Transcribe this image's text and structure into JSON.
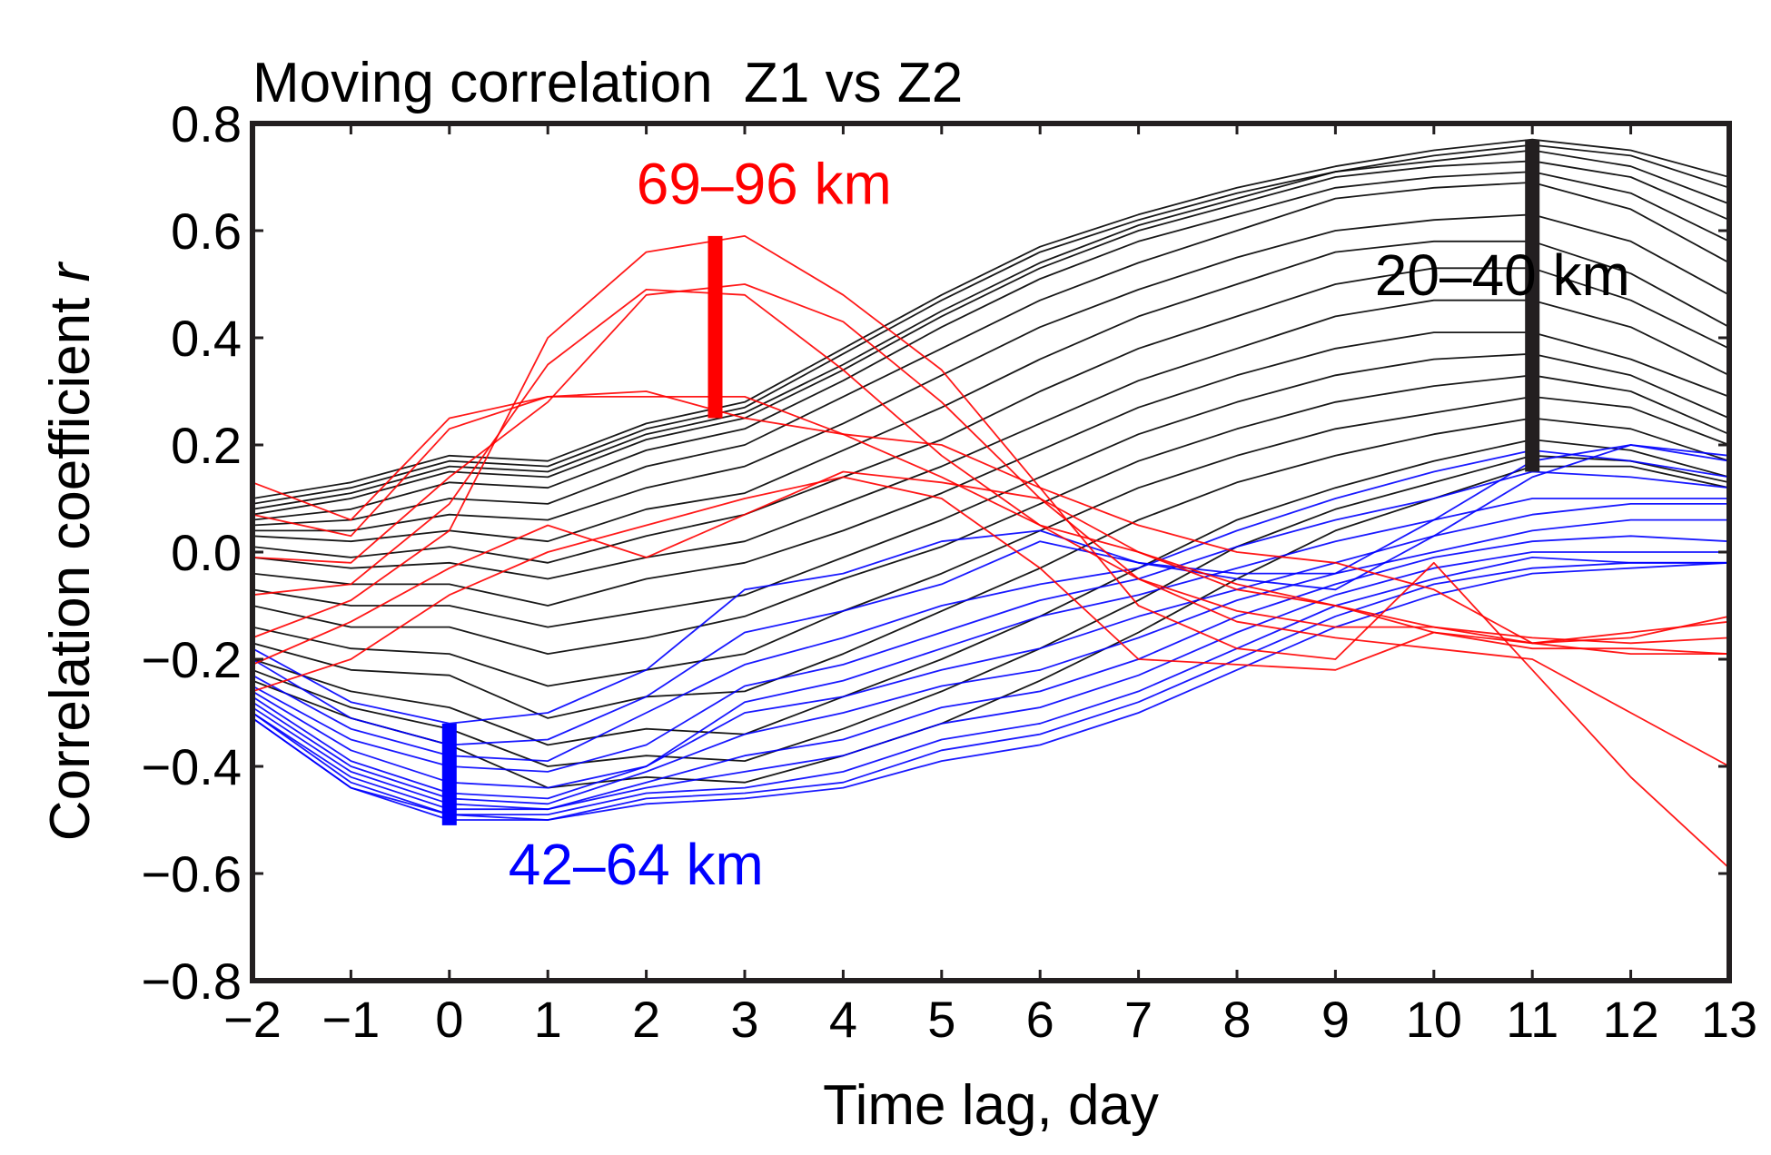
{
  "chart_data": {
    "type": "line",
    "title": "Moving correlation  Z1 vs Z2",
    "xlabel": "Time lag, day",
    "ylabel_main": "Correlation coefficient ",
    "ylabel_italic": "r",
    "xlim": [
      -2,
      13
    ],
    "ylim": [
      -0.8,
      0.8
    ],
    "x_ticks": [
      -2,
      -1,
      0,
      1,
      2,
      3,
      4,
      5,
      6,
      7,
      8,
      9,
      10,
      11,
      12,
      13
    ],
    "x_tick_labels": [
      "−2",
      "−1",
      "0",
      "1",
      "2",
      "3",
      "4",
      "5",
      "6",
      "7",
      "8",
      "9",
      "10",
      "11",
      "12",
      "13"
    ],
    "y_ticks": [
      0.8,
      0.6,
      0.4,
      0.2,
      0.0,
      -0.2,
      -0.4,
      -0.6,
      -0.8
    ],
    "y_tick_labels": [
      "0.8",
      "0.6",
      "0.4",
      "0.2",
      "0.0",
      "−0.2",
      "−0.4",
      "−0.6",
      "−0.8"
    ],
    "x": [
      -2,
      -1,
      0,
      1,
      2,
      3,
      4,
      5,
      6,
      7,
      8,
      9,
      10,
      11,
      12,
      13
    ],
    "groups": [
      {
        "name": "20–40 km",
        "color": "#000000",
        "series": [
          [
            0.1,
            0.13,
            0.18,
            0.17,
            0.24,
            0.28,
            0.38,
            0.48,
            0.57,
            0.63,
            0.68,
            0.72,
            0.75,
            0.77,
            0.75,
            0.7
          ],
          [
            0.09,
            0.12,
            0.17,
            0.16,
            0.23,
            0.27,
            0.37,
            0.47,
            0.56,
            0.62,
            0.67,
            0.71,
            0.74,
            0.76,
            0.74,
            0.68
          ],
          [
            0.08,
            0.11,
            0.16,
            0.15,
            0.22,
            0.26,
            0.35,
            0.45,
            0.54,
            0.61,
            0.66,
            0.71,
            0.73,
            0.75,
            0.72,
            0.65
          ],
          [
            0.07,
            0.1,
            0.15,
            0.14,
            0.21,
            0.25,
            0.34,
            0.44,
            0.53,
            0.6,
            0.65,
            0.7,
            0.72,
            0.73,
            0.7,
            0.62
          ],
          [
            0.06,
            0.08,
            0.13,
            0.12,
            0.19,
            0.23,
            0.32,
            0.42,
            0.51,
            0.58,
            0.63,
            0.68,
            0.7,
            0.71,
            0.67,
            0.58
          ],
          [
            0.05,
            0.06,
            0.1,
            0.09,
            0.16,
            0.2,
            0.29,
            0.38,
            0.47,
            0.54,
            0.6,
            0.66,
            0.68,
            0.69,
            0.64,
            0.54
          ],
          [
            0.04,
            0.04,
            0.07,
            0.06,
            0.12,
            0.16,
            0.24,
            0.33,
            0.42,
            0.49,
            0.55,
            0.6,
            0.62,
            0.63,
            0.58,
            0.48
          ],
          [
            0.03,
            0.02,
            0.04,
            0.02,
            0.08,
            0.11,
            0.19,
            0.27,
            0.36,
            0.44,
            0.5,
            0.56,
            0.58,
            0.58,
            0.52,
            0.42
          ],
          [
            0.01,
            -0.01,
            0.01,
            -0.02,
            0.03,
            0.07,
            0.14,
            0.21,
            0.3,
            0.38,
            0.44,
            0.5,
            0.53,
            0.53,
            0.47,
            0.38
          ],
          [
            -0.01,
            -0.03,
            -0.02,
            -0.05,
            -0.01,
            0.02,
            0.09,
            0.16,
            0.24,
            0.32,
            0.38,
            0.44,
            0.47,
            0.47,
            0.42,
            0.33
          ],
          [
            -0.04,
            -0.06,
            -0.06,
            -0.1,
            -0.05,
            -0.02,
            0.04,
            0.11,
            0.19,
            0.27,
            0.33,
            0.38,
            0.41,
            0.41,
            0.36,
            0.29
          ],
          [
            -0.07,
            -0.1,
            -0.1,
            -0.14,
            -0.11,
            -0.08,
            -0.01,
            0.06,
            0.14,
            0.22,
            0.28,
            0.33,
            0.36,
            0.37,
            0.33,
            0.25
          ],
          [
            -0.1,
            -0.14,
            -0.14,
            -0.19,
            -0.16,
            -0.12,
            -0.05,
            0.01,
            0.09,
            0.17,
            0.23,
            0.28,
            0.31,
            0.33,
            0.3,
            0.22
          ],
          [
            -0.14,
            -0.18,
            -0.19,
            -0.25,
            -0.22,
            -0.19,
            -0.11,
            -0.04,
            0.04,
            0.12,
            0.18,
            0.23,
            0.26,
            0.29,
            0.27,
            0.2
          ],
          [
            -0.17,
            -0.22,
            -0.23,
            -0.31,
            -0.27,
            -0.26,
            -0.19,
            -0.11,
            -0.03,
            0.06,
            0.13,
            0.18,
            0.22,
            0.25,
            0.23,
            0.17
          ],
          [
            -0.2,
            -0.26,
            -0.29,
            -0.36,
            -0.33,
            -0.34,
            -0.27,
            -0.2,
            -0.12,
            -0.03,
            0.06,
            0.12,
            0.17,
            0.21,
            0.19,
            0.14
          ],
          [
            -0.22,
            -0.29,
            -0.33,
            -0.4,
            -0.38,
            -0.39,
            -0.33,
            -0.26,
            -0.18,
            -0.09,
            0.01,
            0.08,
            0.13,
            0.18,
            0.17,
            0.13
          ],
          [
            -0.24,
            -0.31,
            -0.36,
            -0.44,
            -0.42,
            -0.43,
            -0.38,
            -0.32,
            -0.24,
            -0.15,
            -0.05,
            0.04,
            0.1,
            0.16,
            0.16,
            0.12
          ]
        ]
      },
      {
        "name": "42–64 km",
        "color": "#0000ff",
        "series": [
          [
            -0.18,
            -0.28,
            -0.32,
            -0.3,
            -0.22,
            -0.07,
            -0.04,
            0.02,
            0.04,
            -0.02,
            -0.04,
            -0.04,
            0.06,
            0.17,
            0.2,
            0.18
          ],
          [
            -0.2,
            -0.31,
            -0.36,
            -0.35,
            -0.27,
            -0.15,
            -0.11,
            -0.06,
            0.02,
            -0.02,
            -0.05,
            -0.07,
            0.03,
            0.14,
            0.2,
            0.17
          ],
          [
            -0.23,
            -0.33,
            -0.38,
            -0.39,
            -0.3,
            -0.21,
            -0.16,
            -0.1,
            -0.06,
            -0.03,
            0.04,
            0.1,
            0.15,
            0.19,
            0.17,
            0.14
          ],
          [
            -0.25,
            -0.35,
            -0.4,
            -0.41,
            -0.36,
            -0.25,
            -0.21,
            -0.15,
            -0.09,
            -0.05,
            0.01,
            0.06,
            0.1,
            0.15,
            0.14,
            0.12
          ],
          [
            -0.26,
            -0.37,
            -0.43,
            -0.44,
            -0.4,
            -0.28,
            -0.24,
            -0.18,
            -0.12,
            -0.08,
            -0.03,
            0.02,
            0.06,
            0.1,
            0.1,
            0.1
          ],
          [
            -0.27,
            -0.39,
            -0.45,
            -0.46,
            -0.4,
            -0.3,
            -0.27,
            -0.22,
            -0.18,
            -0.12,
            -0.07,
            -0.02,
            0.03,
            0.07,
            0.09,
            0.09
          ],
          [
            -0.28,
            -0.4,
            -0.46,
            -0.47,
            -0.41,
            -0.34,
            -0.3,
            -0.25,
            -0.22,
            -0.16,
            -0.09,
            -0.04,
            0.0,
            0.04,
            0.06,
            0.06
          ],
          [
            -0.29,
            -0.41,
            -0.47,
            -0.48,
            -0.43,
            -0.38,
            -0.35,
            -0.29,
            -0.26,
            -0.2,
            -0.12,
            -0.06,
            -0.01,
            0.02,
            0.03,
            0.02
          ],
          [
            -0.3,
            -0.42,
            -0.48,
            -0.48,
            -0.44,
            -0.41,
            -0.38,
            -0.32,
            -0.29,
            -0.23,
            -0.15,
            -0.08,
            -0.03,
            0.0,
            0.0,
            0.0
          ],
          [
            -0.3,
            -0.43,
            -0.49,
            -0.49,
            -0.45,
            -0.44,
            -0.41,
            -0.35,
            -0.32,
            -0.26,
            -0.18,
            -0.1,
            -0.05,
            -0.01,
            -0.02,
            -0.02
          ],
          [
            -0.31,
            -0.44,
            -0.49,
            -0.5,
            -0.46,
            -0.45,
            -0.43,
            -0.37,
            -0.34,
            -0.28,
            -0.2,
            -0.12,
            -0.06,
            -0.03,
            -0.02,
            -0.02
          ],
          [
            -0.31,
            -0.44,
            -0.5,
            -0.5,
            -0.47,
            -0.46,
            -0.44,
            -0.39,
            -0.36,
            -0.3,
            -0.22,
            -0.14,
            -0.08,
            -0.04,
            -0.03,
            -0.02
          ]
        ]
      },
      {
        "name": "69–96 km",
        "color": "#ff0000",
        "series": [
          [
            0.13,
            0.06,
            0.25,
            0.29,
            0.29,
            0.29,
            0.22,
            0.2,
            0.12,
            0.05,
            0.0,
            -0.02,
            -0.07,
            -0.17,
            -0.15,
            -0.13
          ],
          [
            0.07,
            0.03,
            0.23,
            0.29,
            0.3,
            0.25,
            0.22,
            0.14,
            0.05,
            0.0,
            -0.07,
            -0.1,
            -0.14,
            -0.16,
            -0.17,
            -0.16
          ],
          [
            -0.01,
            -0.02,
            0.14,
            0.28,
            0.48,
            0.5,
            0.43,
            0.28,
            0.1,
            -0.05,
            -0.11,
            -0.14,
            -0.14,
            -0.17,
            -0.19,
            -0.19
          ],
          [
            -0.08,
            -0.06,
            0.09,
            0.35,
            0.49,
            0.48,
            0.34,
            0.18,
            0.05,
            -0.05,
            -0.13,
            -0.16,
            -0.18,
            -0.2,
            -0.3,
            -0.4
          ],
          [
            -0.16,
            -0.09,
            0.04,
            0.4,
            0.56,
            0.59,
            0.48,
            0.34,
            0.12,
            -0.1,
            -0.18,
            -0.2,
            -0.02,
            -0.22,
            -0.42,
            -0.59
          ],
          [
            -0.21,
            -0.13,
            -0.03,
            0.05,
            -0.01,
            0.07,
            0.15,
            0.13,
            0.1,
            0.0,
            -0.06,
            -0.1,
            -0.15,
            -0.17,
            -0.16,
            -0.12
          ],
          [
            -0.26,
            -0.2,
            -0.08,
            0.0,
            0.05,
            0.1,
            0.14,
            0.1,
            -0.03,
            -0.2,
            -0.21,
            -0.22,
            -0.15,
            -0.18,
            -0.18,
            -0.19
          ]
        ]
      }
    ],
    "range_bars": [
      {
        "group": "69–96 km",
        "x": 2.7,
        "y_min": 0.25,
        "y_max": 0.59,
        "color": "#ff0000"
      },
      {
        "group": "42–64 km",
        "x": 0.0,
        "y_min": -0.51,
        "y_max": -0.32,
        "color": "#0000ff"
      },
      {
        "group": "20–40 km",
        "x": 11.0,
        "y_min": 0.15,
        "y_max": 0.77,
        "color": "#231f20"
      }
    ],
    "annotations": [
      {
        "text": "69–96 km",
        "color": "#ff0000",
        "x": 1.9,
        "y": 0.65
      },
      {
        "text": "42–64 km",
        "color": "#0000ff",
        "x": 0.6,
        "y": -0.62
      },
      {
        "text": "20–40 km",
        "color": "#000000",
        "x": 9.4,
        "y": 0.48
      }
    ]
  }
}
